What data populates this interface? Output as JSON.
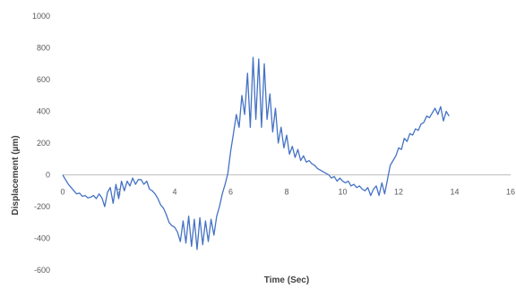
{
  "chart_data": {
    "type": "line",
    "title": "",
    "xlabel": "Time (Sec)",
    "ylabel": "Displacement (µm)",
    "xlim": [
      0,
      16
    ],
    "ylim": [
      -600,
      1000
    ],
    "xticks": [
      "0",
      "2",
      "4",
      "6",
      "8",
      "10",
      "12",
      "14",
      "16"
    ],
    "yticks": [
      "-600",
      "-400",
      "-200",
      "0",
      "200",
      "400",
      "600",
      "800",
      "1000"
    ],
    "grid": false,
    "legend": "none",
    "series": [
      {
        "color": "#4472C4",
        "x": [
          0.0,
          0.1,
          0.2,
          0.3,
          0.4,
          0.5,
          0.6,
          0.7,
          0.8,
          0.9,
          1.0,
          1.1,
          1.2,
          1.3,
          1.4,
          1.5,
          1.6,
          1.7,
          1.8,
          1.9,
          2.0,
          2.1,
          2.2,
          2.3,
          2.4,
          2.5,
          2.6,
          2.7,
          2.8,
          2.9,
          3.0,
          3.1,
          3.2,
          3.3,
          3.4,
          3.5,
          3.6,
          3.7,
          3.8,
          3.9,
          4.0,
          4.1,
          4.2,
          4.3,
          4.4,
          4.5,
          4.6,
          4.7,
          4.8,
          4.9,
          5.0,
          5.1,
          5.2,
          5.3,
          5.4,
          5.5,
          5.6,
          5.7,
          5.8,
          5.9,
          6.0,
          6.1,
          6.2,
          6.3,
          6.4,
          6.5,
          6.6,
          6.7,
          6.8,
          6.9,
          7.0,
          7.1,
          7.2,
          7.3,
          7.4,
          7.5,
          7.6,
          7.7,
          7.8,
          7.9,
          8.0,
          8.1,
          8.2,
          8.3,
          8.4,
          8.5,
          8.6,
          8.7,
          8.8,
          8.9,
          9.0,
          9.1,
          9.2,
          9.3,
          9.4,
          9.5,
          9.6,
          9.7,
          9.8,
          9.9,
          10.0,
          10.1,
          10.2,
          10.3,
          10.4,
          10.5,
          10.6,
          10.7,
          10.8,
          10.9,
          11.0,
          11.1,
          11.2,
          11.3,
          11.4,
          11.5,
          11.6,
          11.7,
          11.8,
          11.9,
          12.0,
          12.1,
          12.2,
          12.3,
          12.4,
          12.5,
          12.6,
          12.7,
          12.8,
          12.9,
          13.0,
          13.1,
          13.2,
          13.3,
          13.4,
          13.5,
          13.6,
          13.7,
          13.8
        ],
        "y": [
          0,
          -30,
          -60,
          -80,
          -100,
          -120,
          -115,
          -135,
          -130,
          -145,
          -140,
          -130,
          -150,
          -120,
          -145,
          -200,
          -110,
          -80,
          -180,
          -60,
          -150,
          -40,
          -100,
          -40,
          -70,
          -20,
          -60,
          -30,
          -30,
          -60,
          -40,
          -90,
          -100,
          -120,
          -150,
          -190,
          -210,
          -250,
          -300,
          -320,
          -330,
          -360,
          -420,
          -290,
          -430,
          -260,
          -450,
          -280,
          -470,
          -270,
          -440,
          -290,
          -420,
          -280,
          -380,
          -260,
          -200,
          -120,
          -60,
          10,
          150,
          260,
          380,
          300,
          500,
          380,
          640,
          300,
          740,
          350,
          730,
          300,
          700,
          350,
          510,
          270,
          420,
          200,
          300,
          170,
          250,
          130,
          180,
          110,
          160,
          90,
          120,
          80,
          90,
          70,
          60,
          40,
          30,
          20,
          10,
          0,
          -20,
          -10,
          -40,
          -20,
          -40,
          -50,
          -40,
          -70,
          -60,
          -80,
          -70,
          -90,
          -100,
          -80,
          -130,
          -90,
          -70,
          -130,
          -50,
          -120,
          -30,
          60,
          90,
          120,
          170,
          160,
          230,
          210,
          260,
          250,
          290,
          280,
          320,
          330,
          370,
          360,
          390,
          420,
          380,
          430,
          340,
          400,
          370
        ]
      }
    ]
  }
}
